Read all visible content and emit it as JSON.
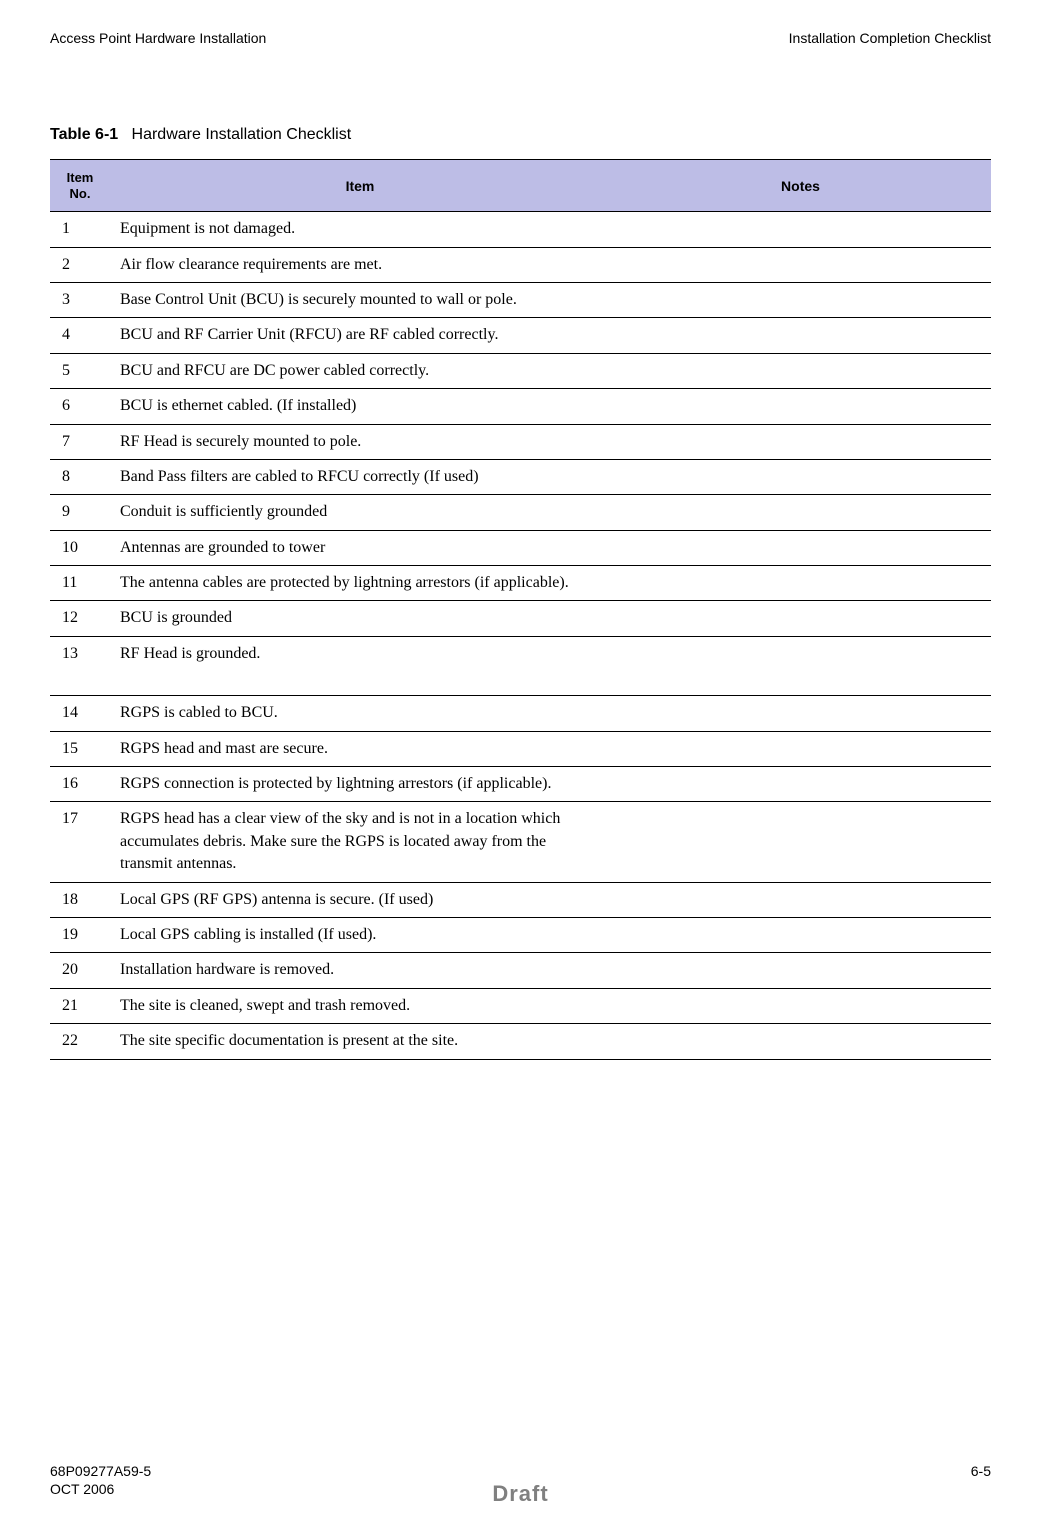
{
  "header": {
    "left": "Access Point Hardware Installation",
    "right": "Installation Completion Checklist"
  },
  "table": {
    "caption_prefix": "Table 6-1",
    "caption_text": "Hardware Installation Checklist",
    "columns": {
      "no_line1": "Item",
      "no_line2": "No.",
      "item": "Item",
      "notes": "Notes"
    },
    "header_bg": "#bdbde6",
    "rows": [
      {
        "no": "1",
        "item": "Equipment is not damaged.",
        "notes": ""
      },
      {
        "no": "2",
        "item": "Air flow clearance requirements are met.",
        "notes": ""
      },
      {
        "no": "3",
        "item": "Base Control Unit (BCU) is securely mounted to wall or pole.",
        "notes": ""
      },
      {
        "no": "4",
        "item": "BCU and RF Carrier Unit (RFCU) are RF cabled correctly.",
        "notes": ""
      },
      {
        "no": "5",
        "item": "BCU and RFCU are DC power cabled correctly.",
        "notes": ""
      },
      {
        "no": "6",
        "item": "BCU is ethernet cabled. (If installed)",
        "notes": ""
      },
      {
        "no": "7",
        "item": "RF Head is securely mounted to pole.",
        "notes": ""
      },
      {
        "no": "8",
        "item": "Band Pass filters are cabled to RFCU correctly (If used)",
        "notes": ""
      },
      {
        "no": "9",
        "item": "Conduit is sufficiently grounded",
        "notes": ""
      },
      {
        "no": "10",
        "item": "Antennas are grounded to tower",
        "notes": ""
      },
      {
        "no": "11",
        "item": "The antenna cables are protected by lightning arrestors (if applicable).",
        "notes": ""
      },
      {
        "no": "12",
        "item": "BCU is grounded",
        "notes": ""
      },
      {
        "no": "13",
        "item": "RF Head is grounded.",
        "notes": ""
      },
      {
        "no": "14",
        "item": "RGPS is cabled to BCU.",
        "notes": ""
      },
      {
        "no": "15",
        "item": "RGPS head and mast are secure.",
        "notes": ""
      },
      {
        "no": "16",
        "item": "RGPS connection is protected by lightning arrestors (if applicable).",
        "notes": ""
      },
      {
        "no": "17",
        "item": "RGPS head has a clear view of the sky and is not in a location which accumulates debris. Make sure the RGPS is located away from the transmit antennas.",
        "notes": ""
      },
      {
        "no": "18",
        "item": "Local GPS (RF GPS) antenna is secure. (If used)",
        "notes": ""
      },
      {
        "no": "19",
        "item": "Local GPS cabling is installed (If used).",
        "notes": ""
      },
      {
        "no": "20",
        "item": "Installation hardware is removed.",
        "notes": ""
      },
      {
        "no": "21",
        "item": "The site is cleaned, swept and trash removed.",
        "notes": ""
      },
      {
        "no": "22",
        "item": "The site specific documentation is present at the site.",
        "notes": ""
      }
    ]
  },
  "footer": {
    "doc_number": "68P09277A59-5",
    "page": "6-5",
    "date": "OCT 2006",
    "draft": "Draft"
  }
}
